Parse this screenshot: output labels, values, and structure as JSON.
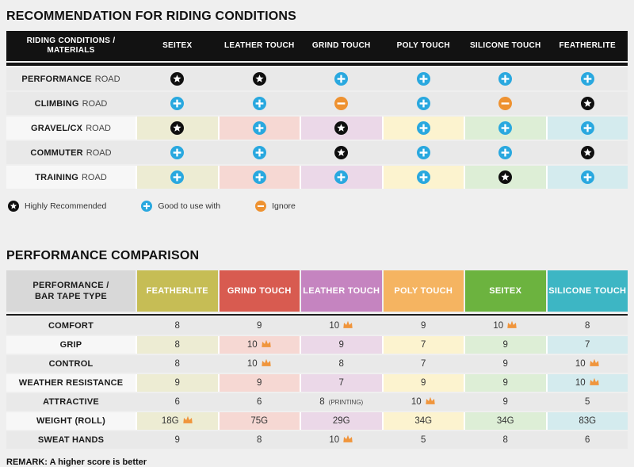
{
  "riding_table": {
    "title": "RECOMMENDATION FOR RIDING CONDITIONS",
    "header_line1": "RIDING CONDITIONS /",
    "header_line2": "MATERIALS",
    "columns": [
      "SEITEX",
      "LEATHER TOUCH",
      "GRIND TOUCH",
      "POLY TOUCH",
      "SILICONE TOUCH",
      "FEATHERLITE"
    ],
    "rows": [
      {
        "label_bold": "PERFORMANCE",
        "label_rest": "ROAD",
        "tinted": false,
        "cells": [
          "star",
          "star",
          "plus",
          "plus",
          "plus",
          "plus"
        ]
      },
      {
        "label_bold": "CLIMBING",
        "label_rest": "ROAD",
        "tinted": false,
        "cells": [
          "plus",
          "plus",
          "minus",
          "plus",
          "minus",
          "star"
        ]
      },
      {
        "label_bold": "GRAVEL/CX",
        "label_rest": "ROAD",
        "tinted": true,
        "cells": [
          "star",
          "plus",
          "star",
          "plus",
          "plus",
          "plus"
        ]
      },
      {
        "label_bold": "COMMUTER",
        "label_rest": "ROAD",
        "tinted": false,
        "cells": [
          "plus",
          "plus",
          "star",
          "plus",
          "plus",
          "star"
        ]
      },
      {
        "label_bold": "TRAINING",
        "label_rest": "ROAD",
        "tinted": true,
        "cells": [
          "plus",
          "plus",
          "plus",
          "plus",
          "star",
          "plus"
        ]
      }
    ],
    "legend": [
      {
        "icon": "star",
        "label": "Highly Recommended"
      },
      {
        "icon": "plus",
        "label": "Good to use with"
      },
      {
        "icon": "minus",
        "label": "Ignore"
      }
    ]
  },
  "performance_table": {
    "title": "PERFORMANCE COMPARISON",
    "header_line1": "PERFORMANCE /",
    "header_line2": "BAR TAPE TYPE",
    "columns": [
      {
        "label": "FEATHERLITE",
        "color": "#c6bd55"
      },
      {
        "label": "GRIND TOUCH",
        "color": "#d85b50"
      },
      {
        "label": "LEATHER TOUCH",
        "color": "#c584c0"
      },
      {
        "label": "POLY TOUCH",
        "color": "#f5b461"
      },
      {
        "label": "SEITEX",
        "color": "#6cb33f"
      },
      {
        "label": "SILICONE TOUCH",
        "color": "#3db6c4"
      }
    ],
    "rows": [
      {
        "label": "COMFORT",
        "tinted": false,
        "cells": [
          {
            "v": "8"
          },
          {
            "v": "9"
          },
          {
            "v": "10",
            "crown": true
          },
          {
            "v": "9"
          },
          {
            "v": "10",
            "crown": true
          },
          {
            "v": "8"
          }
        ]
      },
      {
        "label": "GRIP",
        "tinted": true,
        "cells": [
          {
            "v": "8"
          },
          {
            "v": "10",
            "crown": true
          },
          {
            "v": "9"
          },
          {
            "v": "7"
          },
          {
            "v": "9"
          },
          {
            "v": "7"
          }
        ]
      },
      {
        "label": "CONTROL",
        "tinted": false,
        "cells": [
          {
            "v": "8"
          },
          {
            "v": "10",
            "crown": true
          },
          {
            "v": "8"
          },
          {
            "v": "7"
          },
          {
            "v": "9"
          },
          {
            "v": "10",
            "crown": true
          }
        ]
      },
      {
        "label": "WEATHER RESISTANCE",
        "tinted": true,
        "cells": [
          {
            "v": "9"
          },
          {
            "v": "9"
          },
          {
            "v": "7"
          },
          {
            "v": "9"
          },
          {
            "v": "9"
          },
          {
            "v": "10",
            "crown": true
          }
        ]
      },
      {
        "label": "ATTRACTIVE",
        "tinted": false,
        "cells": [
          {
            "v": "6"
          },
          {
            "v": "6"
          },
          {
            "v": "8",
            "suffix": "(PRINTING)"
          },
          {
            "v": "10",
            "crown": true
          },
          {
            "v": "9"
          },
          {
            "v": "5"
          }
        ]
      },
      {
        "label": "WEIGHT (ROLL)",
        "tinted": true,
        "cells": [
          {
            "v": "18G",
            "crown": true
          },
          {
            "v": "75G"
          },
          {
            "v": "29G"
          },
          {
            "v": "34G"
          },
          {
            "v": "34G"
          },
          {
            "v": "83G"
          }
        ]
      },
      {
        "label": "SWEAT HANDS",
        "tinted": false,
        "cells": [
          {
            "v": "9"
          },
          {
            "v": "8"
          },
          {
            "v": "10",
            "crown": true
          },
          {
            "v": "5"
          },
          {
            "v": "8"
          },
          {
            "v": "6"
          }
        ]
      }
    ],
    "remark": "REMARK: A higher score is better"
  },
  "colors": {
    "star": "#0f0f0f",
    "plus": "#29a8df",
    "minus": "#ee9231",
    "crown": "#f0953c",
    "column_tints": [
      "#edecd3",
      "#f6d8d3",
      "#ebd8e8",
      "#fcf3cf",
      "#ddeed6",
      "#d4ebee"
    ]
  }
}
